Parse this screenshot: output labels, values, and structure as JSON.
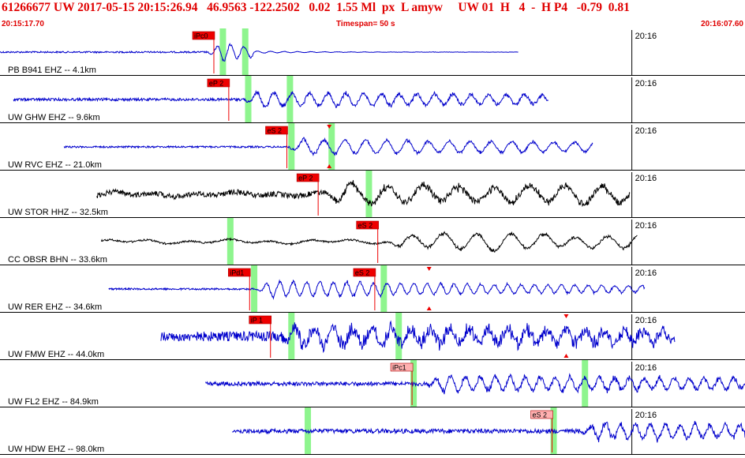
{
  "header": {
    "title": "61266677 UW 2017-05-15 20:15:26.94   46.9563 -122.2502   0.02  1.55 Ml  px  L amyw     UW 01  H   4  -  H P4   -0.79  0.81",
    "start_time": "20:15:17.70",
    "timespan": "Timespan=  50 s",
    "end_time": "20:16:07.60"
  },
  "time_axis": {
    "label": "20:16",
    "start_seconds": 17.7,
    "span_seconds": 50
  },
  "colors": {
    "header_text": "#e00000",
    "trace_blue": "#0000cc",
    "trace_black": "#000000",
    "pick_fill": "#ee0000",
    "pick_fill_light": "#ffb0b0",
    "window_green": "#8ef58e",
    "divider": "#000000"
  },
  "stations": [
    {
      "label": "PB B941 EHZ -- 4.1km",
      "color": "blue",
      "picks": [
        {
          "label": "iPc0",
          "t": 32.0,
          "light": false
        }
      ],
      "windows": [
        32.5,
        34.0
      ],
      "start": 17.7,
      "end": 52.5,
      "onset": 31.6,
      "amp": 0.45,
      "noise": 0.03,
      "period": 0.9,
      "decay": 4.5
    },
    {
      "label": "UW GHW EHZ -- 9.6km",
      "color": "blue",
      "picks": [
        {
          "label": "eP 2",
          "t": 33.0,
          "light": false
        }
      ],
      "windows": [
        34.2,
        37.0
      ],
      "start": 18.6,
      "end": 54.5,
      "onset": 34.0,
      "amp": 0.38,
      "noise": 0.06,
      "period": 1.2,
      "decay": 40,
      "tri": false
    },
    {
      "label": "UW RVC EHZ -- 21.0km",
      "color": "blue",
      "picks": [
        {
          "label": "eS 2",
          "t": 36.9,
          "light": false
        }
      ],
      "windows": [
        37.1,
        39.8
      ],
      "start": 22.0,
      "end": 57.5,
      "onset": 37.0,
      "amp": 0.4,
      "noise": 0.04,
      "period": 1.4,
      "decay": 40,
      "tri": true,
      "tri_t": 39.8
    },
    {
      "label": "UW STOR HHZ -- 32.5km",
      "color": "black",
      "picks": [
        {
          "label": "eP 2",
          "t": 39.0,
          "light": false
        }
      ],
      "windows": [
        42.3
      ],
      "start": 24.2,
      "end": 60.0,
      "onset": 39.5,
      "amp": 0.5,
      "noise": 0.12,
      "period": 2.4,
      "decay": 60,
      "tri": false
    },
    {
      "label": "CC OBSR BHN -- 33.6km",
      "color": "black",
      "picks": [
        {
          "label": "eS 2",
          "t": 43.0,
          "light": false
        }
      ],
      "windows": [
        33.0
      ],
      "start": 24.5,
      "end": 60.5,
      "onset": 43.7,
      "amp": 0.42,
      "noise": 0.04,
      "period": 2.2,
      "decay": 60,
      "tri": false
    },
    {
      "label": "UW RER EHZ -- 34.6km",
      "color": "blue",
      "picks": [
        {
          "label": "iPd1",
          "t": 34.4,
          "light": false
        },
        {
          "label": "eS 2",
          "t": 42.8,
          "light": false
        }
      ],
      "windows": [
        34.6,
        43.3
      ],
      "start": 25.0,
      "end": 61.0,
      "onset": 34.9,
      "amp": 0.42,
      "noise": 0.04,
      "period": 0.9,
      "decay": 30,
      "tri": true,
      "tri_t": 46.5
    },
    {
      "label": "UW FMW EHZ -- 44.0km",
      "color": "blue",
      "picks": [
        {
          "label": "iP 1",
          "t": 35.8,
          "light": false
        }
      ],
      "windows": [
        37.1,
        44.3
      ],
      "start": 28.5,
      "end": 63.0,
      "onset": 36.5,
      "amp": 0.46,
      "noise": 0.22,
      "period": 1.3,
      "decay": 80,
      "tri": true,
      "tri_t": 55.7
    },
    {
      "label": "UW FL2 EHZ -- 84.9km",
      "color": "blue",
      "picks": [
        {
          "label": "iPc1",
          "t": 45.3,
          "light": true
        }
      ],
      "windows": [
        45.3,
        56.8
      ],
      "start": 31.5,
      "end": 72.5,
      "onset": 46.2,
      "amp": 0.4,
      "noise": 0.09,
      "period": 1.0,
      "decay": 60,
      "tri": false
    },
    {
      "label": "UW HDW EHZ -- 98.0km",
      "color": "blue",
      "picks": [
        {
          "label": "eS 2",
          "t": 54.7,
          "light": true
        }
      ],
      "windows": [
        38.2,
        54.7
      ],
      "start": 33.3,
      "end": 75.0,
      "onset": 56.6,
      "amp": 0.4,
      "noise": 0.1,
      "period": 1.0,
      "decay": 60,
      "tri": false
    }
  ]
}
